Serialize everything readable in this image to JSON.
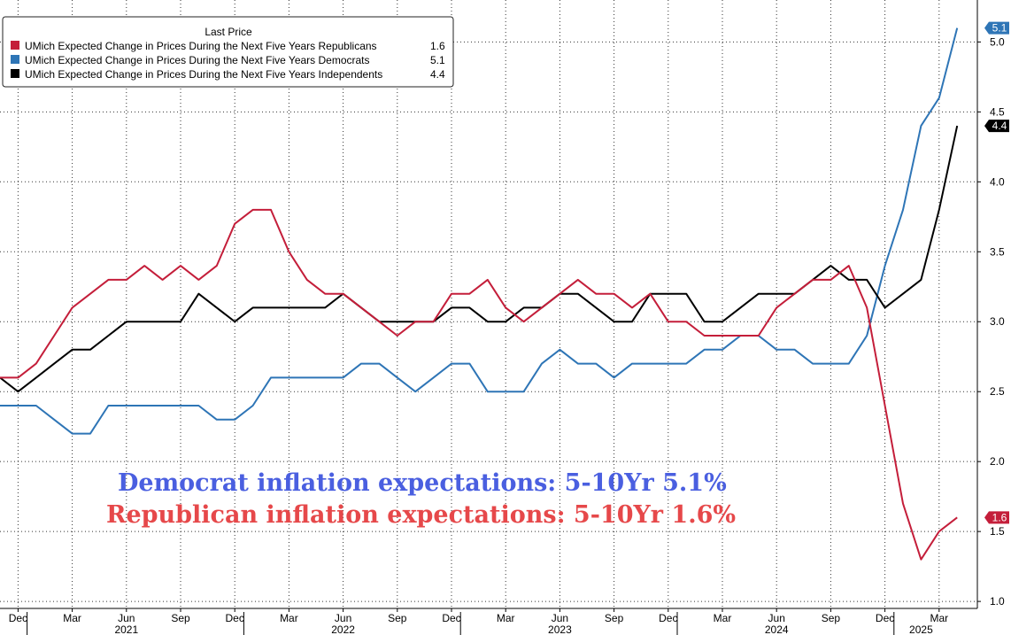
{
  "chart_data": {
    "type": "line",
    "legend": {
      "title": "Last Price",
      "placement": "top-left",
      "entries": [
        {
          "label": "UMich Expected Change in Prices During the Next Five Years Republicans",
          "value": "1.6",
          "color": "#c41e3a"
        },
        {
          "label": "UMich Expected Change in Prices During the Next Five Years Democrats",
          "value": "5.1",
          "color": "#2e75b6"
        },
        {
          "label": "UMich Expected Change in Prices During the Next Five Years Independents",
          "value": "4.4",
          "color": "#000000"
        }
      ]
    },
    "x": [
      "2020-11",
      "2020-12",
      "2021-01",
      "2021-02",
      "2021-03",
      "2021-04",
      "2021-05",
      "2021-06",
      "2021-07",
      "2021-08",
      "2021-09",
      "2021-10",
      "2021-11",
      "2021-12",
      "2022-01",
      "2022-02",
      "2022-03",
      "2022-04",
      "2022-05",
      "2022-06",
      "2022-07",
      "2022-08",
      "2022-09",
      "2022-10",
      "2022-11",
      "2022-12",
      "2023-01",
      "2023-02",
      "2023-03",
      "2023-04",
      "2023-05",
      "2023-06",
      "2023-07",
      "2023-08",
      "2023-09",
      "2023-10",
      "2023-11",
      "2023-12",
      "2024-01",
      "2024-02",
      "2024-03",
      "2024-04",
      "2024-05",
      "2024-06",
      "2024-07",
      "2024-08",
      "2024-09",
      "2024-10",
      "2024-11",
      "2024-12",
      "2025-01",
      "2025-02",
      "2025-03",
      "2025-04"
    ],
    "series": [
      {
        "name": "Republicans",
        "color": "#c41e3a",
        "values": [
          2.6,
          2.6,
          2.7,
          2.9,
          3.1,
          3.2,
          3.3,
          3.3,
          3.4,
          3.3,
          3.4,
          3.3,
          3.4,
          3.7,
          3.8,
          3.8,
          3.5,
          3.3,
          3.2,
          3.2,
          3.1,
          3.0,
          2.9,
          3.0,
          3.0,
          3.2,
          3.2,
          3.3,
          3.1,
          3.0,
          3.1,
          3.2,
          3.3,
          3.2,
          3.2,
          3.1,
          3.2,
          3.0,
          3.0,
          2.9,
          2.9,
          2.9,
          2.9,
          3.1,
          3.2,
          3.3,
          3.3,
          3.4,
          3.1,
          2.4,
          1.7,
          1.3,
          1.5,
          1.6
        ]
      },
      {
        "name": "Democrats",
        "color": "#2e75b6",
        "values": [
          2.4,
          2.4,
          2.4,
          2.3,
          2.2,
          2.2,
          2.4,
          2.4,
          2.4,
          2.4,
          2.4,
          2.4,
          2.3,
          2.3,
          2.4,
          2.6,
          2.6,
          2.6,
          2.6,
          2.6,
          2.7,
          2.7,
          2.6,
          2.5,
          2.6,
          2.7,
          2.7,
          2.5,
          2.5,
          2.5,
          2.7,
          2.8,
          2.7,
          2.7,
          2.6,
          2.7,
          2.7,
          2.7,
          2.7,
          2.8,
          2.8,
          2.9,
          2.9,
          2.8,
          2.8,
          2.7,
          2.7,
          2.7,
          2.9,
          3.4,
          3.8,
          4.4,
          4.6,
          5.1
        ]
      },
      {
        "name": "Independents",
        "color": "#000000",
        "values": [
          2.6,
          2.5,
          2.6,
          2.7,
          2.8,
          2.8,
          2.9,
          3.0,
          3.0,
          3.0,
          3.0,
          3.2,
          3.1,
          3.0,
          3.1,
          3.1,
          3.1,
          3.1,
          3.1,
          3.2,
          3.1,
          3.0,
          3.0,
          3.0,
          3.0,
          3.1,
          3.1,
          3.0,
          3.0,
          3.1,
          3.1,
          3.2,
          3.2,
          3.1,
          3.0,
          3.0,
          3.2,
          3.2,
          3.2,
          3.0,
          3.0,
          3.1,
          3.2,
          3.2,
          3.2,
          3.3,
          3.4,
          3.3,
          3.3,
          3.1,
          3.2,
          3.3,
          3.8,
          4.4
        ]
      }
    ],
    "ylim": [
      0.95,
      5.3
    ],
    "yticks": [
      "1.0",
      "1.5",
      "2.0",
      "2.5",
      "3.0",
      "3.5",
      "4.0",
      "4.5",
      "5.0"
    ],
    "xticks": [
      {
        "date": "2020-12",
        "label": "Dec"
      },
      {
        "date": "2021-03",
        "label": "Mar"
      },
      {
        "date": "2021-06",
        "label": "Jun"
      },
      {
        "date": "2021-09",
        "label": "Sep"
      },
      {
        "date": "2021-12",
        "label": "Dec"
      },
      {
        "date": "2022-03",
        "label": "Mar"
      },
      {
        "date": "2022-06",
        "label": "Jun"
      },
      {
        "date": "2022-09",
        "label": "Sep"
      },
      {
        "date": "2022-12",
        "label": "Dec"
      },
      {
        "date": "2023-03",
        "label": "Mar"
      },
      {
        "date": "2023-06",
        "label": "Jun"
      },
      {
        "date": "2023-09",
        "label": "Sep"
      },
      {
        "date": "2023-12",
        "label": "Dec"
      },
      {
        "date": "2024-03",
        "label": "Mar"
      },
      {
        "date": "2024-06",
        "label": "Jun"
      },
      {
        "date": "2024-09",
        "label": "Sep"
      },
      {
        "date": "2024-12",
        "label": "Dec"
      },
      {
        "date": "2025-03",
        "label": "Mar"
      }
    ],
    "years": [
      {
        "label": "2021",
        "date": "2021-06"
      },
      {
        "label": "2022",
        "date": "2022-06"
      },
      {
        "label": "2023",
        "date": "2023-06"
      },
      {
        "label": "2024",
        "date": "2024-06"
      },
      {
        "label": "2025",
        "date": "2025-02"
      }
    ],
    "year_separators": [
      "2020-12",
      "2021-12",
      "2022-12",
      "2023-12",
      "2024-12"
    ],
    "last_value_tags": [
      {
        "series": "Democrats",
        "text": "5.1",
        "value": 5.1,
        "color": "#2e75b6"
      },
      {
        "series": "Independents",
        "text": "4.4",
        "value": 4.4,
        "color": "#000000"
      },
      {
        "series": "Republicans",
        "text": "1.6",
        "value": 1.6,
        "color": "#c41e3a"
      }
    ],
    "annotations": [
      {
        "text": "Democrat inflation expectations: 5-10Yr 5.1%",
        "color": "#4a5fe0"
      },
      {
        "text": "Republican inflation expectations: 5-10Yr 1.6%",
        "color": "#e6484a"
      }
    ],
    "grid": true
  }
}
